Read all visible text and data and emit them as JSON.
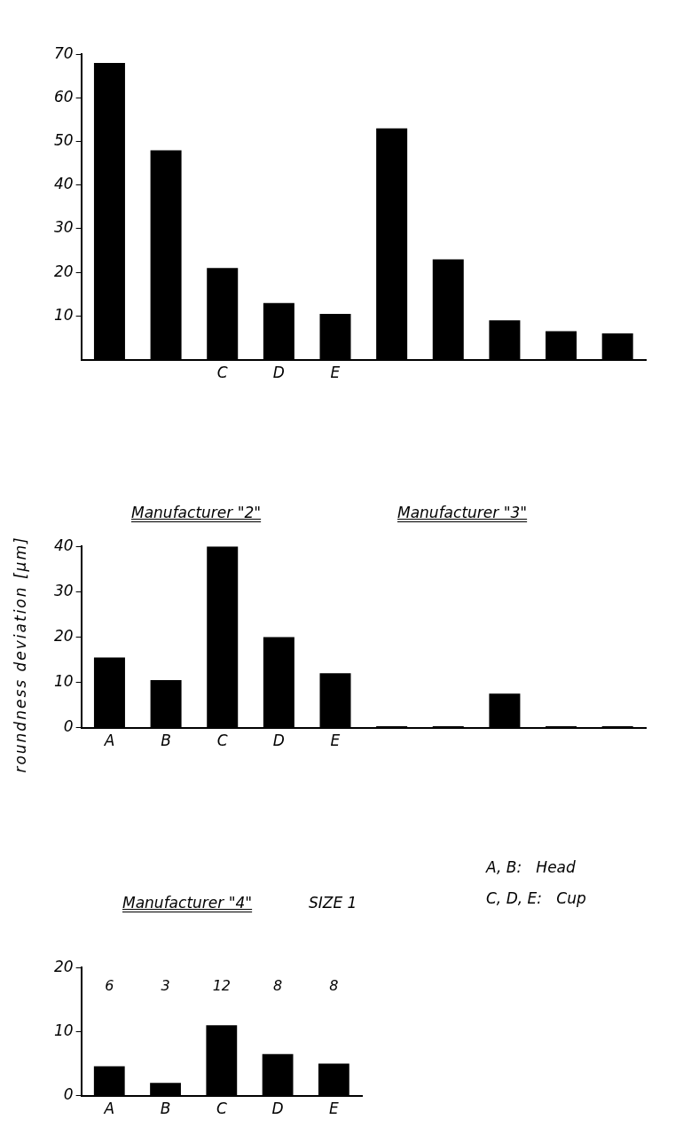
{
  "chart_data": [
    {
      "type": "bar",
      "categories": [
        null,
        null,
        "C",
        "D",
        "E",
        null,
        null,
        null,
        null,
        null
      ],
      "values": [
        68,
        48,
        21,
        13,
        10.5,
        53,
        23,
        9,
        6.5,
        6
      ],
      "color": "#000000",
      "ylim": [
        0,
        70
      ],
      "yticks": [
        10,
        20,
        30,
        40,
        50,
        60,
        70
      ]
    },
    {
      "type": "bar",
      "title": "Manufacturer \"2\"",
      "ylabel": "roundness deviation [μm]",
      "annotations": [
        "Manufacturer \"3\""
      ],
      "categories": [
        "A",
        "B",
        "C",
        "D",
        "E",
        null,
        null,
        null,
        null,
        null
      ],
      "values": [
        15.5,
        10.5,
        40,
        20,
        12,
        0.3,
        0.3,
        7.5,
        0.3,
        0.3
      ],
      "color": "#000000",
      "ylim": [
        0,
        40
      ],
      "yticks": [
        0,
        10,
        20,
        30,
        40
      ]
    },
    {
      "type": "bar",
      "title": "Manufacturer \"4\"",
      "subtitle": "SIZE 1",
      "categories": [
        "A",
        "B",
        "C",
        "D",
        "E"
      ],
      "values": [
        4.6,
        2,
        11,
        6.5,
        5
      ],
      "color": "#000000",
      "ylim": [
        0,
        20
      ],
      "yticks": [
        0,
        10,
        20
      ],
      "annotations": [
        "A, B:   Head",
        "C, D, E:   Cup",
        "6",
        "3",
        "12",
        "8",
        "8"
      ]
    }
  ]
}
